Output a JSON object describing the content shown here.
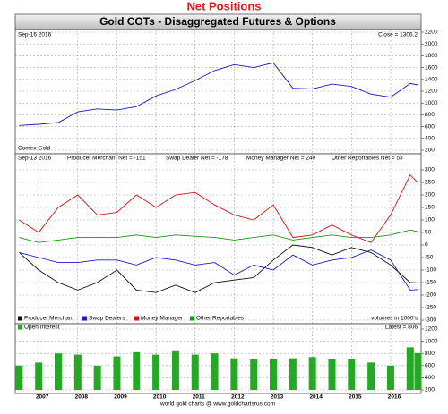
{
  "title": "Net Positions",
  "header": "Gold COTs - Disaggregated Futures & Options",
  "footer": "world gold charts @ www.goldchartsrus.com",
  "chart_data": [
    {
      "type": "line",
      "annotations": [
        "Sep-16 2016",
        "Close = 1306.2",
        "Comex Gold"
      ],
      "x": [
        2006.5,
        2007,
        2007.5,
        2008,
        2008.5,
        2009,
        2009.5,
        2010,
        2010.5,
        2011,
        2011.5,
        2012,
        2012.5,
        2013,
        2013.5,
        2014,
        2014.5,
        2015,
        2015.5,
        2016,
        2016.5,
        2016.7
      ],
      "series": [
        {
          "color": "#1a1acc",
          "values": [
            620,
            640,
            670,
            850,
            900,
            880,
            940,
            1120,
            1230,
            1380,
            1550,
            1650,
            1600,
            1680,
            1250,
            1240,
            1320,
            1280,
            1150,
            1100,
            1330,
            1306.2
          ]
        }
      ],
      "xlim": [
        2006.4,
        2016.78
      ],
      "xticks": [
        2007,
        2008,
        2009,
        2010,
        2011,
        2012,
        2013,
        2014,
        2015,
        2016
      ],
      "ylim": [
        200,
        2200
      ],
      "yticks": [
        200,
        400,
        600,
        800,
        1000,
        1200,
        1400,
        1600,
        1800,
        2000,
        2200
      ],
      "grid": true
    },
    {
      "type": "line",
      "annotations": [
        "Sep-13 2016",
        "Producer Merchant Net = -151",
        "Swap Dealer Net = -178",
        "Money Manager Net = 249",
        "Other Reportables Net = 53"
      ],
      "note": "volumes in 1000's",
      "x": [
        2006.5,
        2007,
        2007.5,
        2008,
        2008.5,
        2009,
        2009.5,
        2010,
        2010.5,
        2011,
        2011.5,
        2012,
        2012.5,
        2013,
        2013.5,
        2014,
        2014.5,
        2015,
        2015.5,
        2016,
        2016.5,
        2016.7
      ],
      "series": [
        {
          "name": "Producer Merchant",
          "color": "#111111",
          "values": [
            -30,
            -100,
            -150,
            -180,
            -150,
            -100,
            -180,
            -190,
            -160,
            -190,
            -150,
            -140,
            -130,
            -60,
            0,
            -10,
            -40,
            -10,
            -30,
            -80,
            -150,
            -151
          ]
        },
        {
          "name": "Swap Dealers",
          "color": "#1a1acc",
          "values": [
            -30,
            -50,
            -70,
            -70,
            -60,
            -60,
            -80,
            -50,
            -60,
            -80,
            -70,
            -120,
            -80,
            -100,
            -40,
            -80,
            -60,
            -50,
            -20,
            -60,
            -180,
            -178
          ]
        },
        {
          "name": "Money Manager",
          "color": "#dd1111",
          "values": [
            100,
            50,
            150,
            200,
            120,
            130,
            200,
            150,
            200,
            210,
            160,
            120,
            100,
            160,
            30,
            40,
            80,
            40,
            10,
            120,
            280,
            249
          ]
        },
        {
          "name": "Other Reportables",
          "color": "#119911",
          "values": [
            30,
            10,
            20,
            30,
            30,
            30,
            40,
            30,
            40,
            35,
            30,
            20,
            30,
            40,
            20,
            30,
            40,
            30,
            30,
            40,
            60,
            53
          ]
        }
      ],
      "xlim": [
        2006.4,
        2016.78
      ],
      "xticks": [
        2007,
        2008,
        2009,
        2010,
        2011,
        2012,
        2013,
        2014,
        2015,
        2016
      ],
      "ylim": [
        -300,
        300
      ],
      "yticks": [
        -300,
        -250,
        -200,
        -150,
        -100,
        -50,
        0,
        50,
        100,
        150,
        200,
        250,
        300
      ],
      "grid": true
    },
    {
      "type": "bar",
      "annotations": [
        "Latest = 806"
      ],
      "x": [
        2006.5,
        2007,
        2007.5,
        2008,
        2008.5,
        2009,
        2009.5,
        2010,
        2010.5,
        2011,
        2011.5,
        2012,
        2012.5,
        2013,
        2013.5,
        2014,
        2014.5,
        2015,
        2015.5,
        2016,
        2016.5,
        2016.7
      ],
      "series": [
        {
          "name": "Open Interest",
          "color": "#22aa22",
          "values": [
            600,
            650,
            800,
            780,
            600,
            750,
            820,
            780,
            850,
            780,
            800,
            720,
            700,
            700,
            720,
            740,
            700,
            700,
            650,
            600,
            900,
            806
          ]
        }
      ],
      "xlim": [
        2006.4,
        2016.78
      ],
      "xticks": [
        2007,
        2008,
        2009,
        2010,
        2011,
        2012,
        2013,
        2014,
        2015,
        2016
      ],
      "ylim": [
        200,
        1200
      ],
      "yticks": [
        200,
        400,
        600,
        800,
        1000,
        1200
      ],
      "grid": true
    }
  ]
}
